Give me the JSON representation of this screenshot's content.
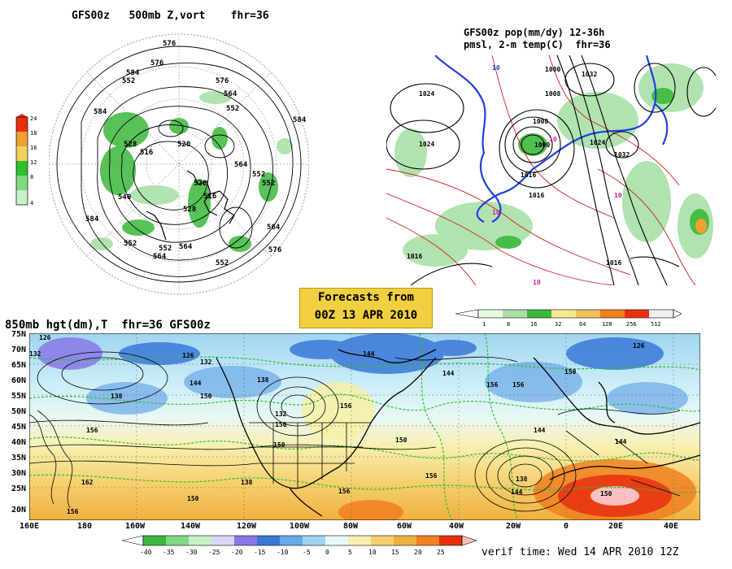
{
  "polar_panel": {
    "title": "GFS00z   500mb Z,vort    fhr=36",
    "legend": [
      "24",
      "18",
      "16",
      "12",
      "8",
      "4"
    ],
    "contours": [
      "576",
      "576",
      "584",
      "552",
      "576",
      "564",
      "552",
      "528",
      "520",
      "516",
      "528",
      "552",
      "564",
      "552",
      "540",
      "516",
      "528",
      "564",
      "584",
      "552",
      "552",
      "564",
      "576",
      "564",
      "552",
      "584",
      "584"
    ]
  },
  "precip_panel": {
    "title_line1": "GFS00z pop(mm/dy) 12-36h",
    "title_line2": "pmsl, 2-m temp(C)  fhr=36",
    "legend": [
      "1",
      "8",
      "16",
      "32",
      "64",
      "128",
      "256",
      "512"
    ],
    "labels": [
      "1024",
      "1024",
      "1000",
      "1008",
      "1008",
      "1000",
      "1016",
      "1024",
      "1032",
      "1032",
      "10",
      "10",
      "10",
      "10",
      "1016",
      "1016",
      "1016",
      "10"
    ]
  },
  "banner": {
    "line1": "Forecasts from",
    "line2": "00Z 13 APR 2010"
  },
  "main_panel": {
    "title": "850mb hgt(dm),T  fhr=36 GFS00z",
    "lat_labels": [
      "75N",
      "70N",
      "65N",
      "60N",
      "55N",
      "50N",
      "45N",
      "40N",
      "35N",
      "30N",
      "25N",
      "20N"
    ],
    "lon_labels": [
      "160E",
      "180",
      "160W",
      "140W",
      "120W",
      "100W",
      "80W",
      "60W",
      "40W",
      "20W",
      "0",
      "20E",
      "40E"
    ],
    "contour_labels": [
      "126",
      "132",
      "138",
      "126",
      "132",
      "144",
      "138",
      "150",
      "144",
      "156",
      "144",
      "150",
      "156",
      "150",
      "156",
      "132",
      "126",
      "138",
      "150",
      "156",
      "162",
      "144",
      "156",
      "150",
      "156",
      "150",
      "144",
      "138",
      "150",
      "144",
      "156"
    ],
    "temp_legend": [
      "-40",
      "-35",
      "-30",
      "-25",
      "-20",
      "-15",
      "-10",
      "-5",
      "0",
      "5",
      "10",
      "15",
      "20",
      "25"
    ],
    "verif": "verif time: Wed 14 APR 2010 12Z"
  },
  "colors": {
    "banner_bg": "#f0d040",
    "cold": "#3a78d8",
    "warm": "#f0a030",
    "hot": "#e83010",
    "green_contour": "#2ec02e",
    "blue_contour": "#2040e0"
  }
}
